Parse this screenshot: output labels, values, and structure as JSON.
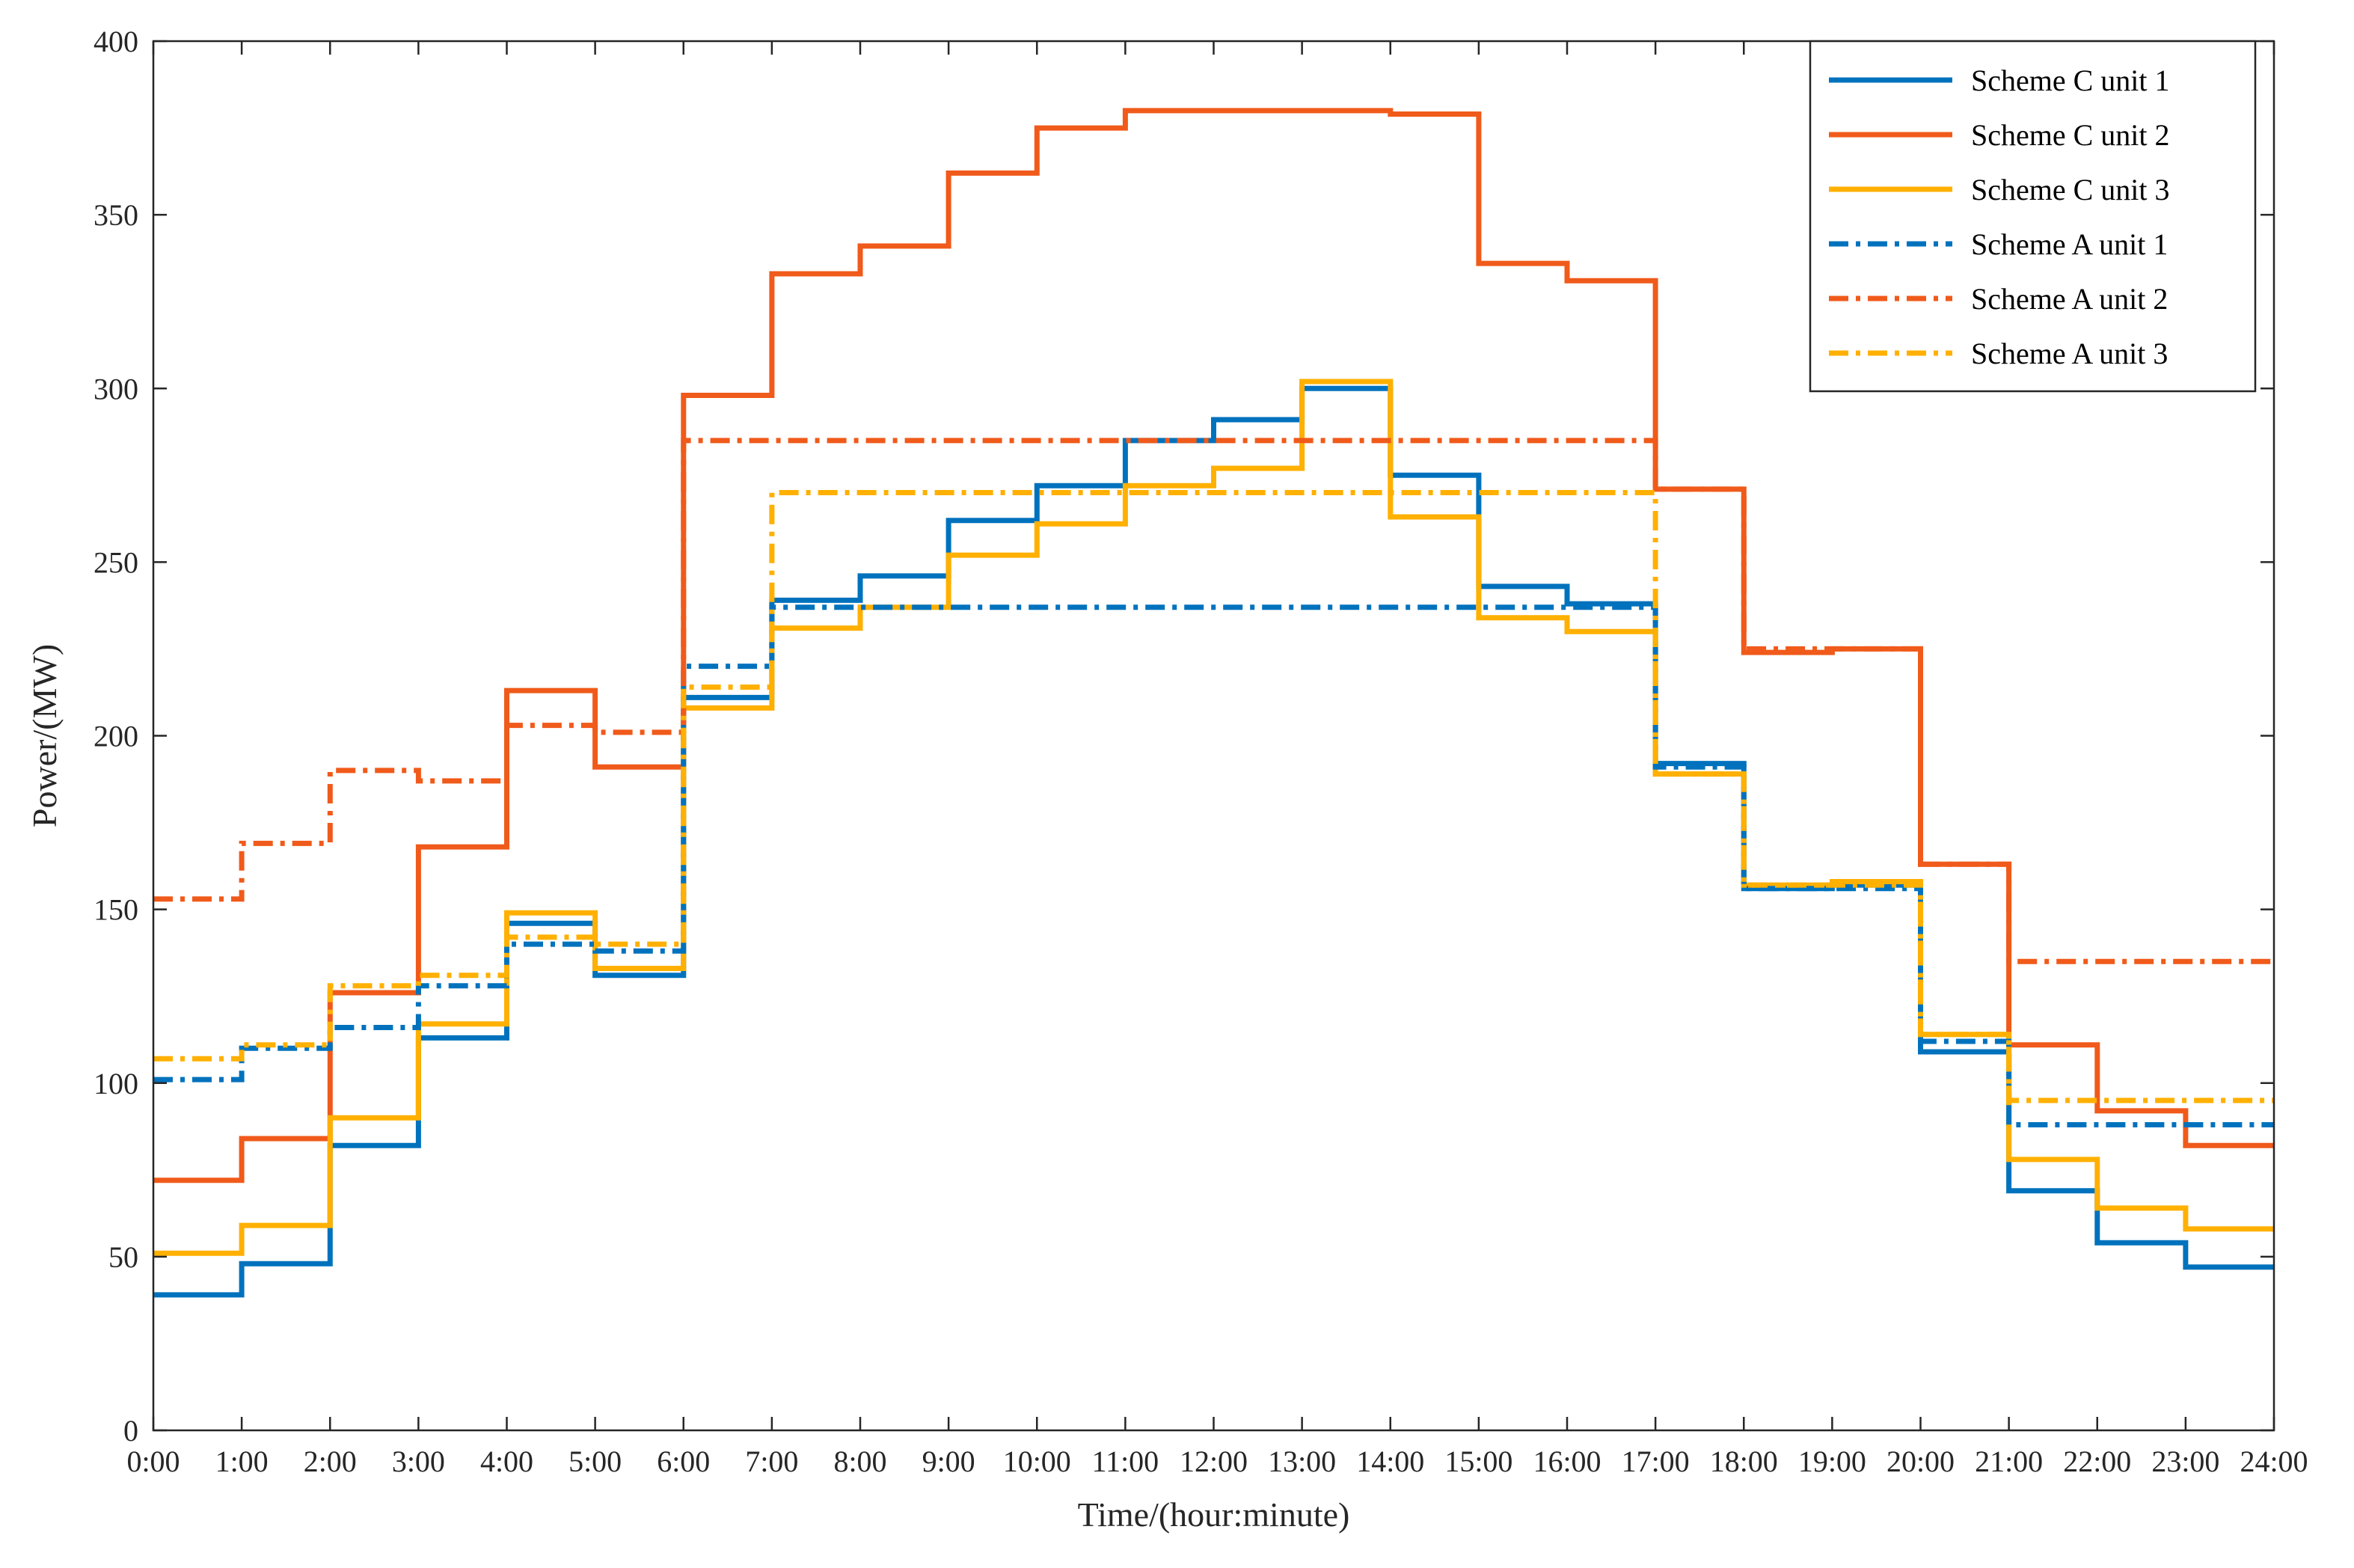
{
  "chart_data": {
    "type": "line",
    "step": true,
    "title": "",
    "xlabel": "Time/(hour:minute)",
    "ylabel": "Power/(MW)",
    "xlim": [
      0,
      24
    ],
    "ylim": [
      0,
      400
    ],
    "grid": false,
    "legend_position": "top-right",
    "x_tick_labels": [
      "0:00",
      "1:00",
      "2:00",
      "3:00",
      "4:00",
      "5:00",
      "6:00",
      "7:00",
      "8:00",
      "9:00",
      "10:00",
      "11:00",
      "12:00",
      "13:00",
      "14:00",
      "15:00",
      "16:00",
      "17:00",
      "18:00",
      "19:00",
      "20:00",
      "21:00",
      "22:00",
      "23:00",
      "24:00"
    ],
    "y_ticks": [
      0,
      50,
      100,
      150,
      200,
      250,
      300,
      350,
      400
    ],
    "series": [
      {
        "name": "Scheme C unit 1",
        "color": "#0072BD",
        "style": "solid",
        "values": [
          39,
          48,
          82,
          113,
          146,
          131,
          211,
          239,
          246,
          262,
          272,
          285,
          291,
          300,
          275,
          243,
          238,
          192,
          156,
          157,
          109,
          69,
          54,
          47
        ]
      },
      {
        "name": "Scheme C unit 2",
        "color": "#F05A1A",
        "style": "solid",
        "values": [
          72,
          84,
          126,
          168,
          213,
          191,
          298,
          333,
          341,
          362,
          375,
          380,
          380,
          380,
          379,
          336,
          331,
          271,
          224,
          225,
          163,
          111,
          92,
          82
        ]
      },
      {
        "name": "Scheme C unit 3",
        "color": "#FFB000",
        "style": "solid",
        "values": [
          51,
          59,
          90,
          117,
          149,
          133,
          208,
          231,
          237,
          252,
          261,
          272,
          277,
          302,
          263,
          234,
          230,
          189,
          157,
          158,
          114,
          78,
          64,
          58
        ]
      },
      {
        "name": "Scheme A unit 1",
        "color": "#0072BD",
        "style": "dashdot",
        "values": [
          101,
          110,
          116,
          128,
          140,
          138,
          220,
          237,
          237,
          237,
          237,
          237,
          237,
          237,
          237,
          237,
          237,
          191,
          156,
          156,
          112,
          88,
          88,
          88
        ]
      },
      {
        "name": "Scheme A unit 2",
        "color": "#F05A1A",
        "style": "dashdot",
        "values": [
          153,
          169,
          190,
          187,
          203,
          201,
          285,
          285,
          285,
          285,
          285,
          285,
          285,
          285,
          285,
          285,
          285,
          271,
          225,
          225,
          163,
          135,
          135,
          135
        ]
      },
      {
        "name": "Scheme A unit 3",
        "color": "#FFB000",
        "style": "dashdot",
        "values": [
          107,
          111,
          128,
          131,
          142,
          140,
          214,
          270,
          270,
          270,
          270,
          270,
          270,
          270,
          270,
          270,
          270,
          189,
          157,
          157,
          114,
          95,
          95,
          95
        ]
      }
    ]
  }
}
